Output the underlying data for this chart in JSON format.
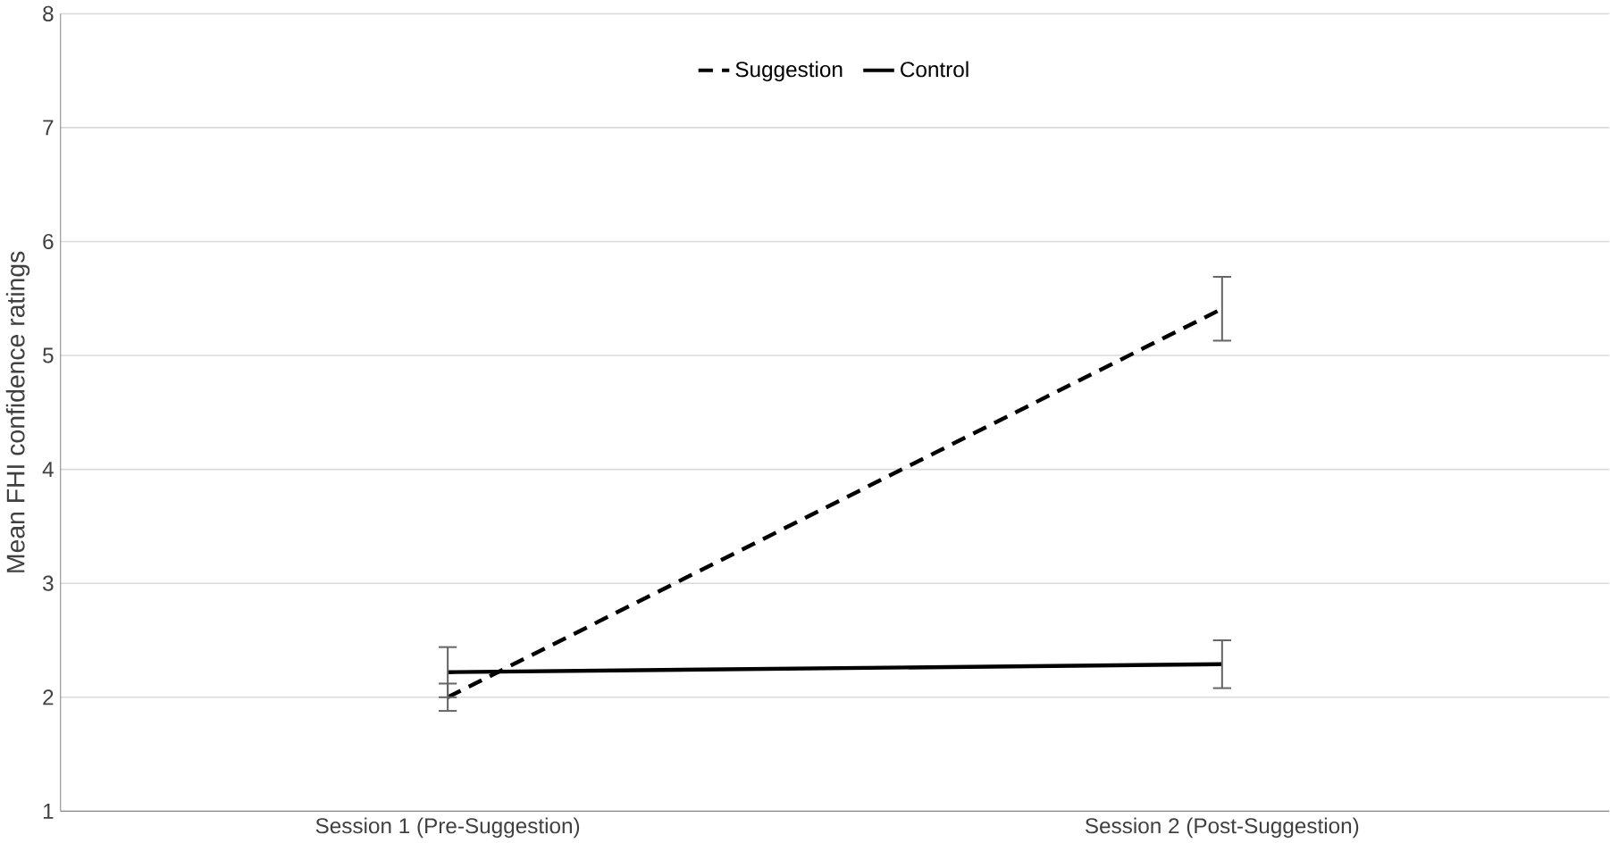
{
  "chart_data": {
    "type": "line",
    "ylabel": "Mean FHI confidence ratings",
    "categories": [
      "Session 1 (Pre-Suggestion)",
      "Session 2 (Post-Suggestion)"
    ],
    "series": [
      {
        "name": "Suggestion",
        "color": "#000000",
        "line_style": "dashed",
        "values": [
          2.0,
          5.41
        ],
        "errors": [
          0.12,
          0.28
        ]
      },
      {
        "name": "Control",
        "color": "#000000",
        "line_style": "solid",
        "values": [
          2.22,
          2.29
        ],
        "errors": [
          0.22,
          0.21
        ]
      }
    ],
    "ylim": [
      1,
      8
    ],
    "yticks": [
      1,
      2,
      3,
      4,
      5,
      6,
      7,
      8
    ],
    "grid": "y",
    "legend": "top",
    "marker": "none"
  }
}
